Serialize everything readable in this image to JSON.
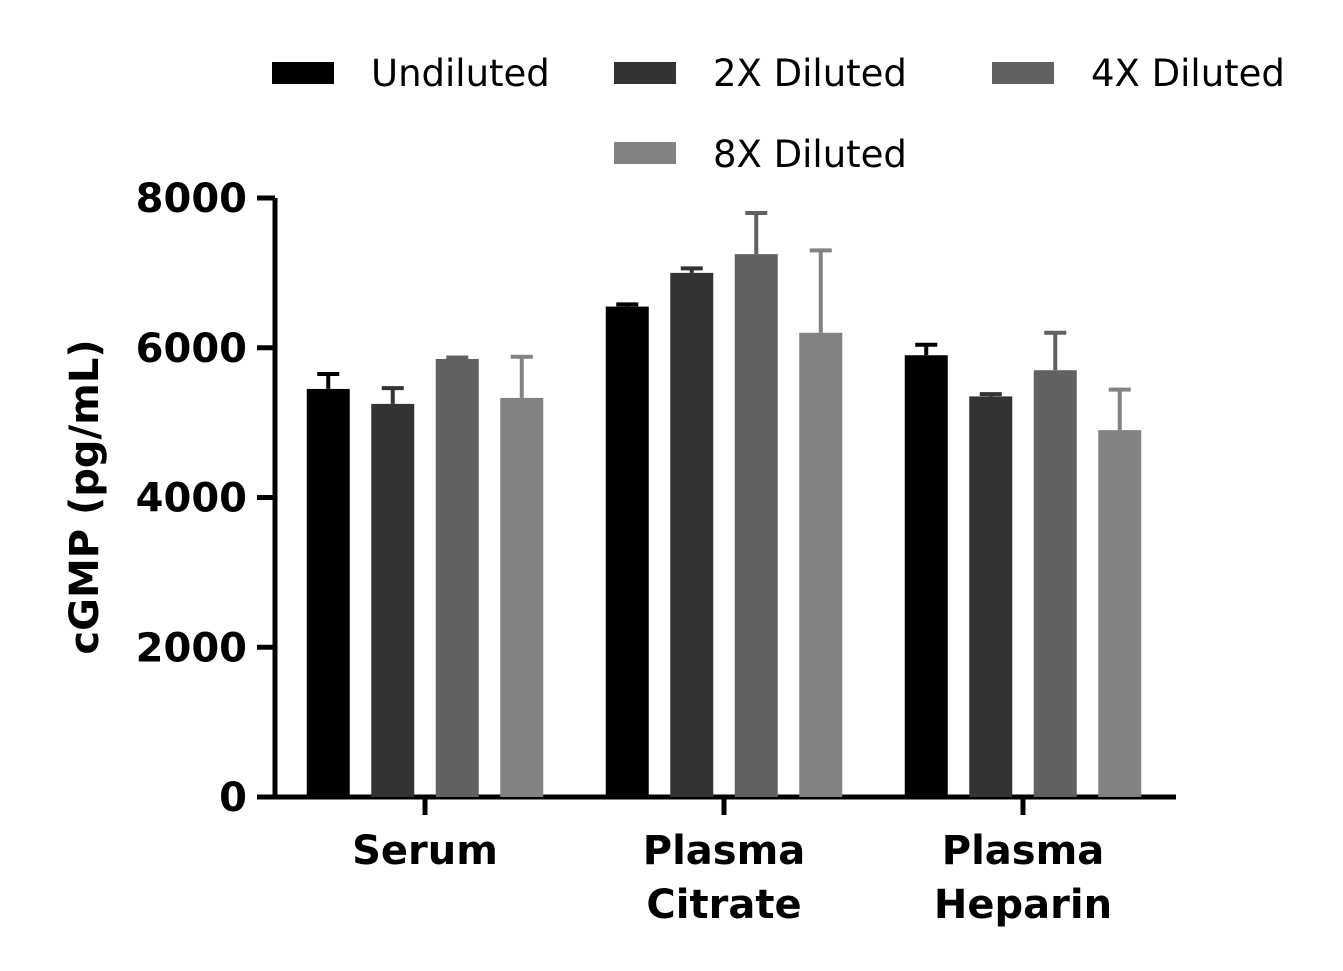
{
  "chart_data": {
    "type": "bar",
    "xlabel": "",
    "ylabel": "cGMP (pg/mL)",
    "ylim": [
      0,
      8000
    ],
    "yticks": [
      0,
      2000,
      4000,
      6000,
      8000
    ],
    "ytick_labels": [
      "0",
      "2000",
      "4000",
      "6000",
      "8000"
    ],
    "categories": [
      [
        "Serum"
      ],
      [
        "Plasma",
        "Citrate"
      ],
      [
        "Plasma",
        "Heparin"
      ]
    ],
    "series": [
      {
        "name": "Undiluted",
        "color": "#000000",
        "values": [
          5450,
          6550,
          5900
        ],
        "error_upper": [
          5650,
          6580,
          6040
        ]
      },
      {
        "name": "2X Diluted",
        "color": "#333333",
        "values": [
          5250,
          7000,
          5350
        ],
        "error_upper": [
          5460,
          7060,
          5380
        ]
      },
      {
        "name": "4X Diluted",
        "color": "#616161",
        "values": [
          5850,
          7250,
          5700
        ],
        "error_upper": [
          5870,
          7800,
          6200
        ]
      },
      {
        "name": "8X Diluted",
        "color": "#828282",
        "values": [
          5330,
          6200,
          4900
        ],
        "error_upper": [
          5880,
          7300,
          5440
        ]
      }
    ],
    "error_bars": "upper",
    "legend_position": "top",
    "grid": false
  }
}
